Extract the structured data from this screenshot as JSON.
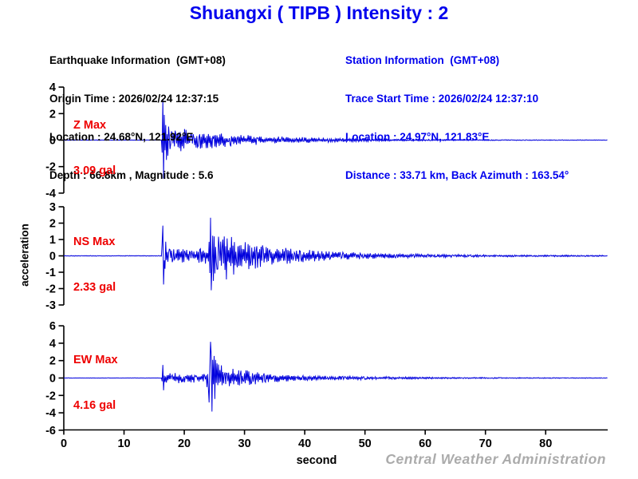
{
  "title": "Shuangxi ( TIPB ) Intensity : 2",
  "earthquake_info": {
    "heading": "Earthquake Information  (GMT+08)",
    "origin_time": "Origin Time : 2026/02/24 12:37:15",
    "location": "Location : 24.68°N, 121.92°E",
    "depth_magnitude": "Depth : 66.8km , Magnitude : 5.6"
  },
  "station_info": {
    "heading": "Station Information  (GMT+08)",
    "trace_start_time": "Trace Start Time : 2026/02/24 12:37:10",
    "location": "Location : 24.97°N, 121.83°E",
    "distance_azimuth": "Distance : 33.71 km, Back Azimuth : 163.54°"
  },
  "watermark": "Central Weather Administration",
  "colors": {
    "accent_blue": "#0000EE",
    "waveform_blue": "#0000DD",
    "label_red": "#EE0000",
    "axis_black": "#000000",
    "watermark_gray": "#ABABAB"
  },
  "chart_data": {
    "type": "line",
    "subtype": "seismogram-3-component",
    "xlabel": "second",
    "ylabel": "acceleration",
    "unit": "gal",
    "x_ticks": [
      0,
      10,
      20,
      30,
      40,
      50,
      60,
      70,
      80
    ],
    "x_range": [
      0,
      90.3
    ],
    "grid": false,
    "series": [
      {
        "name": "Z",
        "label_line1": "Z Max",
        "label_line2": "3.09 gal",
        "max_gal": 3.09,
        "y_ticks": [
          4,
          2,
          0,
          -2,
          -4
        ],
        "y_range": [
          -4,
          4
        ],
        "envelope": [
          [
            0,
            0.02
          ],
          [
            16.25,
            0.02
          ],
          [
            16.4,
            3.0
          ],
          [
            16.9,
            2.2
          ],
          [
            17.6,
            1.15
          ],
          [
            19,
            0.95
          ],
          [
            21,
            0.8
          ],
          [
            24,
            0.65
          ],
          [
            27,
            0.5
          ],
          [
            30,
            0.42
          ],
          [
            34,
            0.3
          ],
          [
            38,
            0.25
          ],
          [
            42,
            0.2
          ],
          [
            46,
            0.15
          ],
          [
            50,
            0.12
          ],
          [
            55,
            0.08
          ],
          [
            60,
            0.06
          ],
          [
            66,
            0.04
          ],
          [
            72,
            0.035
          ],
          [
            80,
            0.025
          ],
          [
            90.3,
            0.02
          ]
        ],
        "peaks": [
          [
            16.4,
            3.09
          ],
          [
            16.55,
            -2.9
          ]
        ]
      },
      {
        "name": "NS",
        "label_line1": "NS Max",
        "label_line2": "2.33 gal",
        "max_gal": 2.33,
        "y_ticks": [
          3,
          2,
          1,
          0,
          -1,
          -2,
          -3
        ],
        "y_range": [
          -3,
          3
        ],
        "envelope": [
          [
            0,
            0.02
          ],
          [
            16.25,
            0.02
          ],
          [
            16.4,
            1.8
          ],
          [
            16.8,
            1.0
          ],
          [
            17.3,
            0.45
          ],
          [
            20,
            0.4
          ],
          [
            23.9,
            0.5
          ],
          [
            24.3,
            2.25
          ],
          [
            25,
            1.8
          ],
          [
            25.8,
            1.35
          ],
          [
            26.8,
            1.5
          ],
          [
            27.8,
            1.3
          ],
          [
            29,
            1.05
          ],
          [
            30.5,
            0.9
          ],
          [
            32.5,
            0.72
          ],
          [
            34.5,
            0.58
          ],
          [
            37,
            0.48
          ],
          [
            40,
            0.38
          ],
          [
            44,
            0.28
          ],
          [
            48,
            0.22
          ],
          [
            52,
            0.17
          ],
          [
            56,
            0.13
          ],
          [
            60,
            0.11
          ],
          [
            65,
            0.09
          ],
          [
            70,
            0.07
          ],
          [
            80,
            0.05
          ],
          [
            90.3,
            0.04
          ]
        ],
        "peaks": [
          [
            16.4,
            1.85
          ],
          [
            16.6,
            -1.75
          ],
          [
            24.35,
            2.33
          ],
          [
            24.5,
            -2.1
          ]
        ]
      },
      {
        "name": "EW",
        "label_line1": "EW Max",
        "label_line2": "4.16 gal",
        "max_gal": 4.16,
        "y_ticks": [
          6,
          4,
          2,
          0,
          -2,
          -4,
          -6
        ],
        "y_range": [
          -6,
          6
        ],
        "envelope": [
          [
            0,
            0.02
          ],
          [
            16.25,
            0.02
          ],
          [
            16.4,
            1.45
          ],
          [
            16.8,
            0.85
          ],
          [
            17.3,
            0.6
          ],
          [
            20,
            0.62
          ],
          [
            23.6,
            0.55
          ],
          [
            24.35,
            4.0
          ],
          [
            24.9,
            3.0
          ],
          [
            25.6,
            1.9
          ],
          [
            26.5,
            1.55
          ],
          [
            27.6,
            1.3
          ],
          [
            28.6,
            1.05
          ],
          [
            29.6,
            1.1
          ],
          [
            31,
            0.8
          ],
          [
            33,
            0.62
          ],
          [
            35,
            0.5
          ],
          [
            38,
            0.38
          ],
          [
            42,
            0.3
          ],
          [
            46,
            0.24
          ],
          [
            50,
            0.2
          ],
          [
            55,
            0.15
          ],
          [
            60,
            0.11
          ],
          [
            66,
            0.08
          ],
          [
            72,
            0.07
          ],
          [
            80,
            0.05
          ],
          [
            90.3,
            0.04
          ]
        ],
        "peaks": [
          [
            16.4,
            1.5
          ],
          [
            16.6,
            -1.4
          ],
          [
            24.4,
            4.16
          ],
          [
            24.55,
            -3.85
          ]
        ]
      }
    ]
  }
}
